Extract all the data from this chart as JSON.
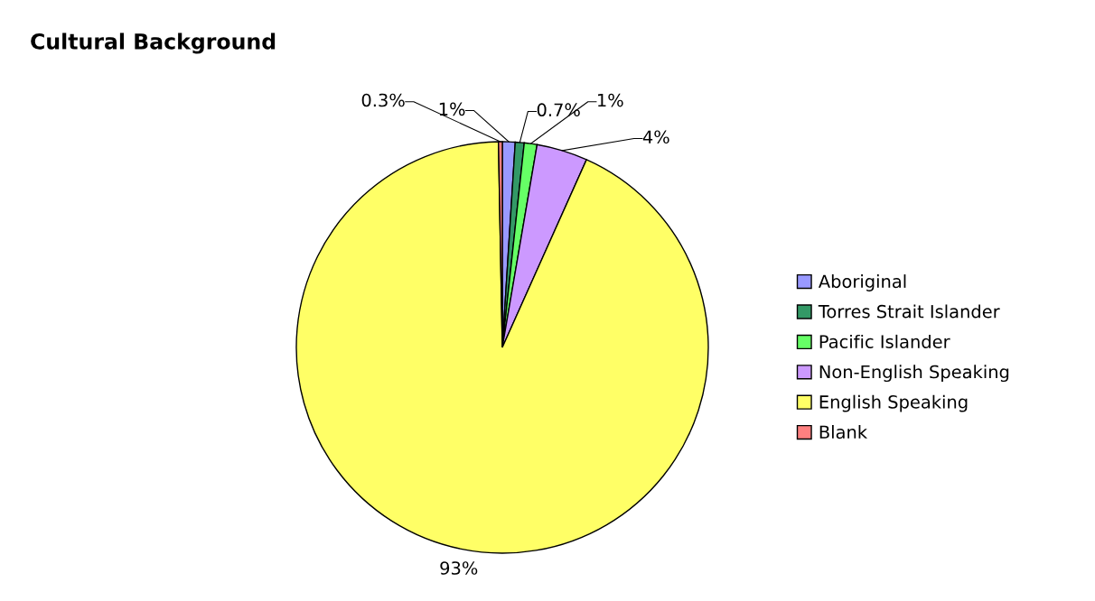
{
  "chart_data": {
    "type": "pie",
    "title": "Cultural Background",
    "categories": [
      "Aboriginal",
      "Torres Strait Islander",
      "Pacific Islander",
      "Non-English Speaking",
      "English Speaking",
      "Blank"
    ],
    "values": [
      1,
      0.7,
      1,
      4,
      93,
      0.3
    ],
    "colors": [
      "#9999ff",
      "#339966",
      "#66ff66",
      "#cc99ff",
      "#ffff66",
      "#ff8080"
    ],
    "value_labels": [
      "1%",
      "0.7%",
      "1%",
      "4%",
      "93%",
      "0.3%"
    ],
    "legend": "right"
  }
}
